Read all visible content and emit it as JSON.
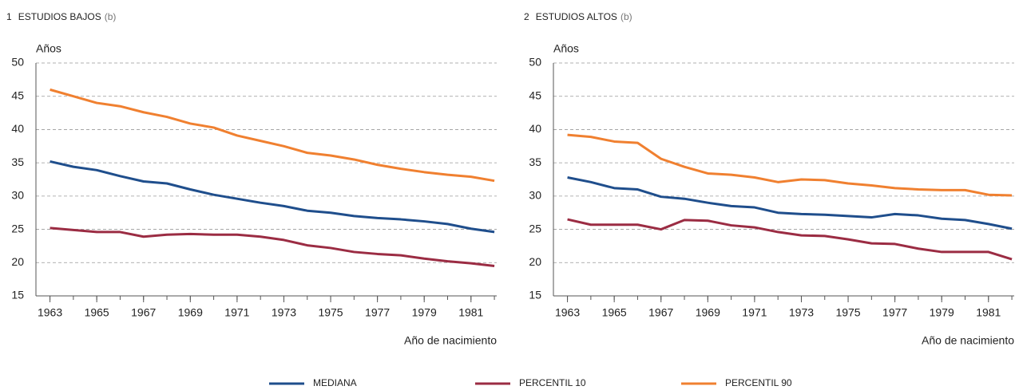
{
  "chart_data": [
    {
      "type": "line",
      "number": "1",
      "title": "ESTUDIOS BAJOS",
      "title_note": "(b)",
      "ylabel": "Años",
      "xlabel": "Año de nacimiento",
      "x": [
        1963,
        1964,
        1965,
        1966,
        1967,
        1968,
        1969,
        1970,
        1971,
        1972,
        1973,
        1974,
        1975,
        1976,
        1977,
        1978,
        1979,
        1980,
        1981,
        1982
      ],
      "xlim": [
        1962.4,
        1982.1
      ],
      "xticks": [
        1963,
        1965,
        1967,
        1969,
        1971,
        1973,
        1975,
        1977,
        1979,
        1981
      ],
      "ylim": [
        15,
        50
      ],
      "yticks": [
        15,
        20,
        25,
        30,
        35,
        40,
        45,
        50
      ],
      "grid": true,
      "series": [
        {
          "name": "MEDIANA",
          "color": "#1f4e8c",
          "values": [
            35.2,
            34.4,
            33.9,
            33.0,
            32.2,
            31.9,
            31.0,
            30.2,
            29.6,
            29.0,
            28.5,
            27.8,
            27.5,
            27.0,
            26.7,
            26.5,
            26.2,
            25.8,
            25.1,
            24.6
          ]
        },
        {
          "name": "PERCENTIL 10",
          "color": "#9b2c43",
          "values": [
            25.2,
            24.9,
            24.6,
            24.6,
            23.9,
            24.2,
            24.3,
            24.2,
            24.2,
            23.9,
            23.4,
            22.6,
            22.2,
            21.6,
            21.3,
            21.1,
            20.6,
            20.2,
            19.9,
            19.5
          ]
        },
        {
          "name": "PERCENTIL 90",
          "color": "#f08030",
          "values": [
            46.0,
            45.0,
            44.0,
            43.5,
            42.6,
            41.9,
            40.9,
            40.3,
            39.1,
            38.3,
            37.5,
            36.5,
            36.1,
            35.5,
            34.7,
            34.1,
            33.6,
            33.2,
            32.9,
            32.3
          ]
        }
      ]
    },
    {
      "type": "line",
      "number": "2",
      "title": "ESTUDIOS ALTOS",
      "title_note": "(b)",
      "ylabel": "Años",
      "xlabel": "Año de nacimiento",
      "x": [
        1963,
        1964,
        1965,
        1966,
        1967,
        1968,
        1969,
        1970,
        1971,
        1972,
        1973,
        1974,
        1975,
        1976,
        1977,
        1978,
        1979,
        1980,
        1981,
        1982
      ],
      "xlim": [
        1962.4,
        1982.1
      ],
      "xticks": [
        1963,
        1965,
        1967,
        1969,
        1971,
        1973,
        1975,
        1977,
        1979,
        1981
      ],
      "ylim": [
        15,
        50
      ],
      "yticks": [
        15,
        20,
        25,
        30,
        35,
        40,
        45,
        50
      ],
      "grid": true,
      "series": [
        {
          "color": "#1f4e8c",
          "values": [
            32.8,
            32.1,
            31.2,
            31.0,
            29.9,
            29.6,
            29.0,
            28.5,
            28.3,
            27.5,
            27.3,
            27.2,
            27.0,
            26.8,
            27.3,
            27.1,
            26.6,
            26.4,
            25.8,
            25.1
          ]
        },
        {
          "color": "#9b2c43",
          "values": [
            26.5,
            25.7,
            25.7,
            25.7,
            25.0,
            26.4,
            26.3,
            25.6,
            25.3,
            24.6,
            24.1,
            24.0,
            23.5,
            22.9,
            22.8,
            22.1,
            21.6,
            21.6,
            21.6,
            20.5
          ]
        },
        {
          "color": "#f08030",
          "values": [
            39.2,
            38.9,
            38.2,
            38.0,
            35.6,
            34.4,
            33.4,
            33.2,
            32.8,
            32.1,
            32.5,
            32.4,
            31.9,
            31.6,
            31.2,
            31.0,
            30.9,
            30.9,
            30.2,
            30.1
          ]
        }
      ]
    }
  ]
}
